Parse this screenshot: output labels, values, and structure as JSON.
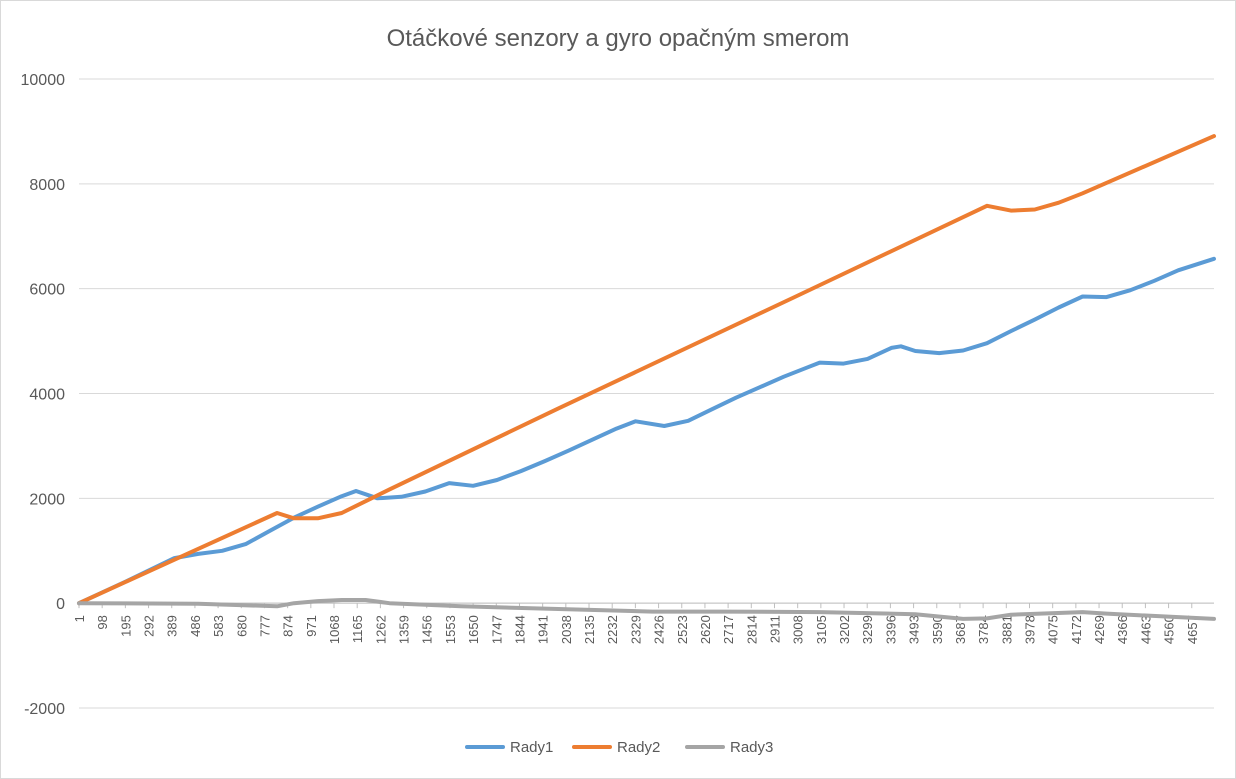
{
  "chart_data": {
    "type": "line",
    "title": "Otáčkové senzory a gyro opačným smerom",
    "xlabel": "",
    "ylabel": "",
    "ylim": [
      -2000,
      10000
    ],
    "yticks": [
      -2000,
      0,
      2000,
      4000,
      6000,
      8000,
      10000
    ],
    "xlim": [
      1,
      4750
    ],
    "xticks": [
      1,
      98,
      195,
      292,
      389,
      486,
      583,
      680,
      777,
      874,
      971,
      1068,
      1165,
      1262,
      1359,
      1456,
      1553,
      1650,
      1747,
      1844,
      1941,
      2038,
      2135,
      2232,
      2329,
      2426,
      2523,
      2620,
      2717,
      2814,
      2911,
      3008,
      3105,
      3202,
      3299,
      3396,
      3493,
      3590,
      3687,
      3784,
      3881,
      3978,
      4075,
      4172,
      4269,
      4366,
      4463,
      4560,
      4657
    ],
    "grid": true,
    "legend_position": "bottom",
    "series": [
      {
        "name": "Rady1",
        "color": "#5b9bd5",
        "x": [
          1,
          200,
          400,
          500,
          600,
          700,
          800,
          900,
          1000,
          1100,
          1160,
          1250,
          1350,
          1450,
          1550,
          1650,
          1750,
          1850,
          1950,
          2050,
          2150,
          2250,
          2330,
          2450,
          2550,
          2650,
          2750,
          2850,
          2950,
          3050,
          3100,
          3200,
          3300,
          3400,
          3440,
          3500,
          3600,
          3700,
          3800,
          3900,
          4000,
          4100,
          4200,
          4300,
          4400,
          4500,
          4600,
          4750
        ],
        "y": [
          0,
          420,
          860,
          940,
          1000,
          1130,
          1380,
          1630,
          1840,
          2040,
          2140,
          2000,
          2030,
          2130,
          2290,
          2240,
          2350,
          2520,
          2710,
          2910,
          3120,
          3330,
          3470,
          3380,
          3480,
          3700,
          3920,
          4120,
          4320,
          4500,
          4590,
          4570,
          4660,
          4870,
          4900,
          4810,
          4770,
          4820,
          4960,
          5190,
          5410,
          5640,
          5850,
          5840,
          5970,
          6150,
          6350,
          6570
        ]
      },
      {
        "name": "Rady2",
        "color": "#ed7d31",
        "x": [
          1,
          400,
          830,
          900,
          1000,
          1100,
          1300,
          2000,
          3000,
          3800,
          3900,
          4000,
          4100,
          4200,
          4750
        ],
        "y": [
          0,
          830,
          1720,
          1620,
          1620,
          1720,
          2170,
          3700,
          5850,
          7580,
          7490,
          7510,
          7640,
          7820,
          8910
        ]
      },
      {
        "name": "Rady3",
        "color": "#a5a5a5",
        "x": [
          1,
          500,
          830,
          900,
          1000,
          1100,
          1200,
          1300,
          1600,
          2400,
          2700,
          3100,
          3500,
          3700,
          3800,
          3900,
          4200,
          4300,
          4750
        ],
        "y": [
          0,
          -10,
          -60,
          0,
          40,
          60,
          60,
          0,
          -60,
          -160,
          -160,
          -170,
          -210,
          -300,
          -290,
          -220,
          -170,
          -200,
          -300
        ]
      }
    ]
  }
}
